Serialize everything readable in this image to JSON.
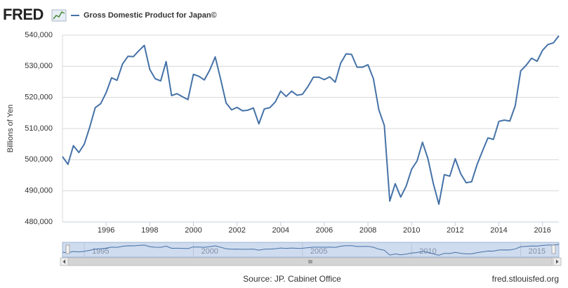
{
  "header": {
    "logo": "FRED"
  },
  "chart_data": {
    "type": "line",
    "y_label": "Billions of Yen",
    "x": [
      1994,
      1994.25,
      1994.5,
      1994.75,
      1995,
      1995.25,
      1995.5,
      1995.75,
      1996,
      1996.25,
      1996.5,
      1996.75,
      1997,
      1997.25,
      1997.5,
      1997.75,
      1998,
      1998.25,
      1998.5,
      1998.75,
      1999,
      1999.25,
      1999.5,
      1999.75,
      2000,
      2000.25,
      2000.5,
      2000.75,
      2001,
      2001.25,
      2001.5,
      2001.75,
      2002,
      2002.25,
      2002.5,
      2002.75,
      2003,
      2003.25,
      2003.5,
      2003.75,
      2004,
      2004.25,
      2004.5,
      2004.75,
      2005,
      2005.25,
      2005.5,
      2005.75,
      2006,
      2006.25,
      2006.5,
      2006.75,
      2007,
      2007.25,
      2007.5,
      2007.75,
      2008,
      2008.25,
      2008.5,
      2008.75,
      2009,
      2009.25,
      2009.5,
      2009.75,
      2010,
      2010.25,
      2010.5,
      2010.75,
      2011,
      2011.25,
      2011.5,
      2011.75,
      2012,
      2012.25,
      2012.5,
      2012.75,
      2013,
      2013.25,
      2013.5,
      2013.75,
      2014,
      2014.25,
      2014.5,
      2014.75,
      2015,
      2015.25,
      2015.5,
      2015.75,
      2016,
      2016.25,
      2016.5,
      2016.75
    ],
    "series": [
      {
        "name": "Gross Domestic Product for Japan©",
        "color": "#4572a7",
        "values": [
          501000,
          498500,
          504500,
          502300,
          505000,
          510500,
          516700,
          518000,
          521500,
          526300,
          525500,
          530700,
          533200,
          533100,
          535000,
          536700,
          529000,
          526000,
          525300,
          531500,
          520600,
          521200,
          520200,
          519300,
          527400,
          526800,
          525600,
          528800,
          533000,
          525800,
          518200,
          516000,
          516800,
          515700,
          515900,
          516600,
          511500,
          516300,
          516700,
          518500,
          522000,
          520300,
          522000,
          520700,
          521000,
          523500,
          526500,
          526500,
          525700,
          526600,
          524900,
          531000,
          534000,
          533800,
          529700,
          529700,
          530500,
          526000,
          516000,
          511000,
          486700,
          492300,
          488000,
          491500,
          496900,
          499600,
          505600,
          500300,
          492200,
          485700,
          495200,
          494700,
          500300,
          495500,
          492600,
          492900,
          498400,
          502800,
          507000,
          506500,
          512300,
          512700,
          512400,
          517300,
          528500,
          530300,
          532600,
          531600,
          535100,
          537000,
          537500,
          539800
        ]
      }
    ],
    "xlim": [
      1994,
      2016.75
    ],
    "ylim": [
      480000,
      540000
    ],
    "xticks": [
      1996,
      1998,
      2000,
      2002,
      2004,
      2006,
      2008,
      2010,
      2012,
      2014,
      2016
    ],
    "yticks": [
      {
        "value": 480000,
        "label": "480,000"
      },
      {
        "value": 490000,
        "label": "490,000"
      },
      {
        "value": 500000,
        "label": "500,000"
      },
      {
        "value": 510000,
        "label": "510,000"
      },
      {
        "value": 520000,
        "label": "520,000"
      },
      {
        "value": 530000,
        "label": "530,000"
      },
      {
        "value": 540000,
        "label": "540,000"
      }
    ],
    "grid": true,
    "navigator_ticks": [
      1995,
      2000,
      2005,
      2010,
      2015
    ]
  },
  "footer": {
    "source": "Source: JP. Cabinet Office",
    "site": "fred.stlouisfed.org"
  }
}
